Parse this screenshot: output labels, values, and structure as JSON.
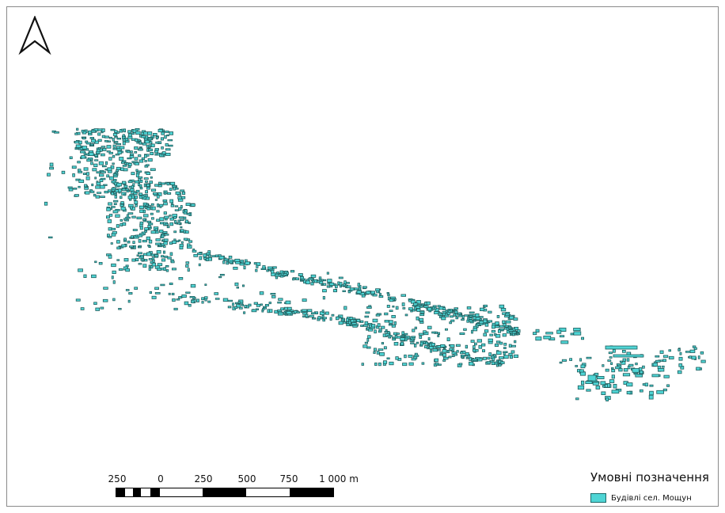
{
  "north_arrow": {
    "icon": "north-arrow-icon"
  },
  "map": {
    "layer_name": "Будівлі сел. Мощун",
    "fill_color": "#4fd5d5",
    "outline_color": "#1f5c5c"
  },
  "scalebar": {
    "labels": [
      "250",
      "0",
      "250",
      "500",
      "750",
      "1 000 m"
    ]
  },
  "legend": {
    "title": "Умовні позначення",
    "items": [
      {
        "label": "Будівлі сел. Мощун",
        "color": "#4fd5d5"
      }
    ]
  }
}
